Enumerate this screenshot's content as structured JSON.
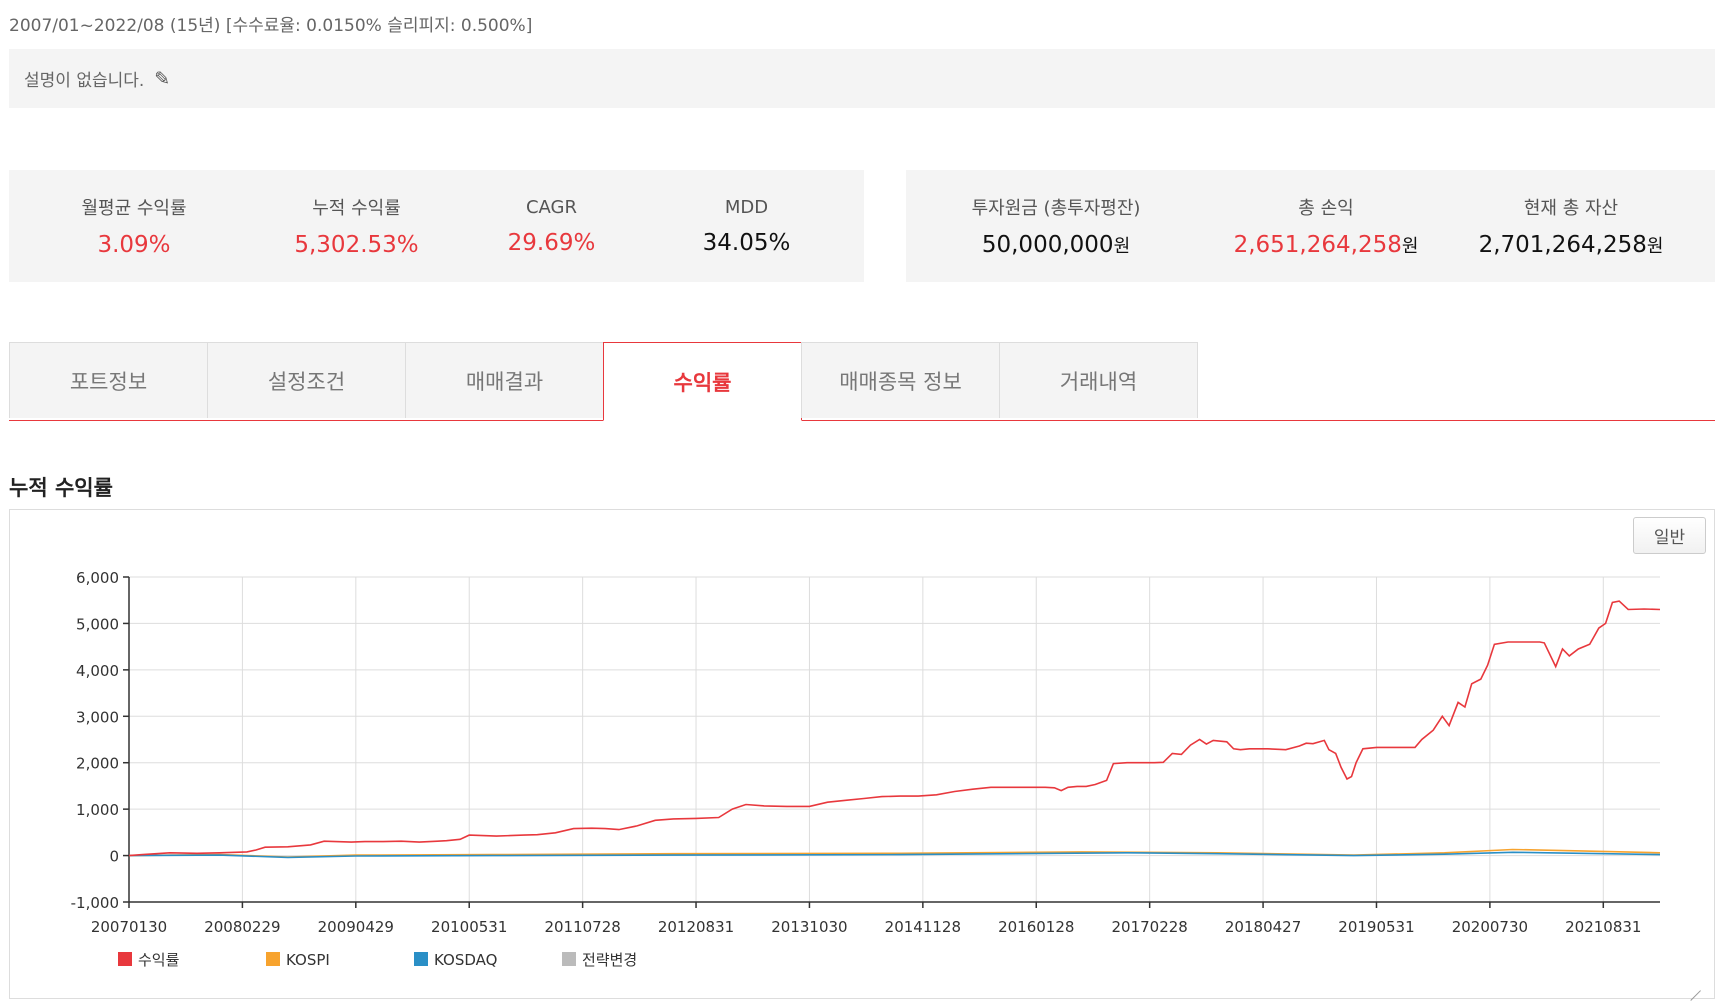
{
  "header": {
    "period": "2007/01~2022/08 (15년) [수수료율: 0.0150% 슬리피지: 0.500%]",
    "description": "설명이 없습니다."
  },
  "stats_left": [
    {
      "label": "월평균 수익률",
      "value": "3.09%",
      "color": "#e8383d"
    },
    {
      "label": "누적 수익률",
      "value": "5,302.53%",
      "color": "#e8383d"
    },
    {
      "label": "CAGR",
      "value": "29.69%",
      "color": "#e8383d"
    },
    {
      "label": "MDD",
      "value": "34.05%",
      "color": "#111111"
    }
  ],
  "stats_right": [
    {
      "label": "투자원금 (총투자평잔)",
      "value": "50,000,000",
      "unit": "원",
      "color": "#111111"
    },
    {
      "label": "총 손익",
      "value": "2,651,264,258",
      "unit": "원",
      "color": "#e8383d"
    },
    {
      "label": "현재 총 자산",
      "value": "2,701,264,258",
      "unit": "원",
      "color": "#111111"
    }
  ],
  "tabs": [
    {
      "label": "포트정보",
      "active": false
    },
    {
      "label": "설정조건",
      "active": false
    },
    {
      "label": "매매결과",
      "active": false
    },
    {
      "label": "수익률",
      "active": true
    },
    {
      "label": "매매종목 정보",
      "active": false
    },
    {
      "label": "거래내역",
      "active": false
    }
  ],
  "section_title": "누적 수익률",
  "chart_mode_button": "일반",
  "chart_data": {
    "type": "line",
    "title": "",
    "xlabel": "",
    "ylabel": "",
    "ylim": [
      -1000,
      6000
    ],
    "yticks": [
      -1000,
      0,
      1000,
      2000,
      3000,
      4000,
      5000,
      6000
    ],
    "ytick_labels": [
      "-1,000",
      "0",
      "1,000",
      "2,000",
      "3,000",
      "4,000",
      "5,000",
      "6,000"
    ],
    "xticks": [
      "20070130",
      "20080229",
      "20090429",
      "20100531",
      "20110728",
      "20120831",
      "20131030",
      "20141128",
      "20160128",
      "20170228",
      "20180427",
      "20190531",
      "20200730",
      "20210831"
    ],
    "grid": true,
    "legend_position": "bottom-left",
    "series": [
      {
        "name": "수익률",
        "color": "#e8383d",
        "points": [
          [
            0,
            0
          ],
          [
            0.3,
            20
          ],
          [
            0.9,
            60
          ],
          [
            1.5,
            50
          ],
          [
            2.0,
            60
          ],
          [
            2.6,
            80
          ],
          [
            2.8,
            120
          ],
          [
            3.0,
            180
          ],
          [
            3.5,
            190
          ],
          [
            4.0,
            230
          ],
          [
            4.3,
            310
          ],
          [
            4.9,
            290
          ],
          [
            5.2,
            300
          ],
          [
            5.6,
            300
          ],
          [
            6.0,
            310
          ],
          [
            6.4,
            290
          ],
          [
            6.8,
            310
          ],
          [
            7.0,
            320
          ],
          [
            7.3,
            350
          ],
          [
            7.5,
            440
          ],
          [
            7.8,
            430
          ],
          [
            8.1,
            420
          ],
          [
            8.4,
            430
          ],
          [
            8.7,
            440
          ],
          [
            9.0,
            450
          ],
          [
            9.4,
            490
          ],
          [
            9.8,
            580
          ],
          [
            10.2,
            590
          ],
          [
            10.5,
            580
          ],
          [
            10.8,
            560
          ],
          [
            11.2,
            640
          ],
          [
            11.6,
            760
          ],
          [
            12.0,
            790
          ],
          [
            12.5,
            800
          ],
          [
            13.0,
            820
          ],
          [
            13.3,
            1000
          ],
          [
            13.6,
            1100
          ],
          [
            14.0,
            1070
          ],
          [
            14.5,
            1060
          ],
          [
            15.0,
            1060
          ],
          [
            15.4,
            1150
          ],
          [
            15.8,
            1190
          ],
          [
            16.2,
            1230
          ],
          [
            16.6,
            1270
          ],
          [
            17.0,
            1280
          ],
          [
            17.4,
            1280
          ],
          [
            17.8,
            1310
          ],
          [
            18.2,
            1380
          ],
          [
            18.6,
            1430
          ],
          [
            19.0,
            1470
          ],
          [
            19.4,
            1470
          ],
          [
            19.8,
            1470
          ],
          [
            20.2,
            1470
          ],
          [
            20.4,
            1460
          ],
          [
            20.55,
            1400
          ],
          [
            20.7,
            1470
          ],
          [
            20.9,
            1490
          ],
          [
            21.1,
            1490
          ],
          [
            21.3,
            1530
          ],
          [
            21.55,
            1620
          ],
          [
            21.7,
            1980
          ],
          [
            22.0,
            2000
          ],
          [
            22.3,
            2000
          ],
          [
            22.6,
            2000
          ],
          [
            22.8,
            2010
          ],
          [
            23.0,
            2200
          ],
          [
            23.2,
            2180
          ],
          [
            23.4,
            2380
          ],
          [
            23.6,
            2500
          ],
          [
            23.75,
            2400
          ],
          [
            23.9,
            2480
          ],
          [
            24.2,
            2450
          ],
          [
            24.35,
            2300
          ],
          [
            24.5,
            2280
          ],
          [
            24.7,
            2300
          ],
          [
            25.1,
            2300
          ],
          [
            25.5,
            2280
          ],
          [
            25.8,
            2360
          ],
          [
            25.95,
            2420
          ],
          [
            26.1,
            2410
          ],
          [
            26.35,
            2480
          ],
          [
            26.45,
            2280
          ],
          [
            26.6,
            2200
          ],
          [
            26.72,
            1900
          ],
          [
            26.85,
            1650
          ],
          [
            26.95,
            1700
          ],
          [
            27.05,
            2000
          ],
          [
            27.2,
            2300
          ],
          [
            27.5,
            2330
          ],
          [
            27.8,
            2330
          ],
          [
            28.1,
            2330
          ],
          [
            28.35,
            2330
          ],
          [
            28.5,
            2500
          ],
          [
            28.75,
            2700
          ],
          [
            28.95,
            3000
          ],
          [
            29.1,
            2800
          ],
          [
            29.3,
            3300
          ],
          [
            29.45,
            3200
          ],
          [
            29.6,
            3700
          ],
          [
            29.8,
            3800
          ],
          [
            29.95,
            4100
          ],
          [
            30.1,
            4550
          ],
          [
            30.4,
            4600
          ],
          [
            30.8,
            4600
          ],
          [
            31.1,
            4600
          ],
          [
            31.2,
            4580
          ],
          [
            31.45,
            4070
          ],
          [
            31.6,
            4450
          ],
          [
            31.75,
            4300
          ],
          [
            31.95,
            4450
          ],
          [
            32.2,
            4550
          ],
          [
            32.4,
            4900
          ],
          [
            32.55,
            5000
          ],
          [
            32.7,
            5450
          ],
          [
            32.85,
            5480
          ],
          [
            33.05,
            5300
          ],
          [
            33.4,
            5310
          ],
          [
            33.75,
            5300
          ]
        ]
      },
      {
        "name": "KOSPI",
        "color": "#f7a32e",
        "points": [
          [
            0,
            0
          ],
          [
            2,
            20
          ],
          [
            3.5,
            -30
          ],
          [
            5,
            10
          ],
          [
            8,
            20
          ],
          [
            12,
            40
          ],
          [
            17,
            50
          ],
          [
            21,
            80
          ],
          [
            24,
            60
          ],
          [
            27,
            10
          ],
          [
            29,
            60
          ],
          [
            30.5,
            130
          ],
          [
            32,
            100
          ],
          [
            33.75,
            60
          ]
        ]
      },
      {
        "name": "KOSDAQ",
        "color": "#2a8fc6",
        "points": [
          [
            0,
            0
          ],
          [
            2,
            10
          ],
          [
            3.5,
            -40
          ],
          [
            5,
            -10
          ],
          [
            8,
            0
          ],
          [
            12,
            10
          ],
          [
            17,
            20
          ],
          [
            20.5,
            50
          ],
          [
            22,
            60
          ],
          [
            24,
            40
          ],
          [
            27,
            0
          ],
          [
            29,
            30
          ],
          [
            30.5,
            70
          ],
          [
            32,
            50
          ],
          [
            33.75,
            20
          ]
        ]
      },
      {
        "name": "전략변경",
        "color": "#bbbbbb",
        "points": []
      }
    ]
  }
}
